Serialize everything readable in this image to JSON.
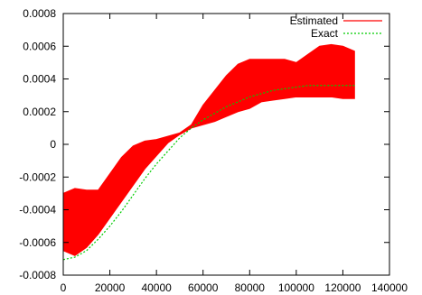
{
  "chart_data": {
    "type": "area",
    "title": "",
    "xlabel": "",
    "ylabel": "",
    "xlim": [
      0,
      140000
    ],
    "ylim": [
      -0.0008,
      0.0008
    ],
    "x_ticks": [
      0,
      20000,
      40000,
      60000,
      80000,
      100000,
      120000,
      140000
    ],
    "x_tick_labels": [
      "0",
      "20000",
      "40000",
      "60000",
      "80000",
      "100000",
      "120000",
      "140000"
    ],
    "y_ticks": [
      -0.0008,
      -0.0006,
      -0.0004,
      -0.0002,
      0,
      0.0002,
      0.0004,
      0.0006,
      0.0008
    ],
    "y_tick_labels": [
      "-0.0008",
      "-0.0006",
      "-0.0004",
      "-0.0002",
      "0",
      "0.0002",
      "0.0004",
      "0.0006",
      "0.0008"
    ],
    "grid": false,
    "legend_position": "top-right",
    "series": [
      {
        "name": "Estimated",
        "kind": "band",
        "color": "#ff0000",
        "x": [
          0,
          5000,
          10000,
          15000,
          20000,
          25000,
          30000,
          35000,
          40000,
          45000,
          50000,
          55000,
          60000,
          65000,
          70000,
          75000,
          80000,
          85000,
          90000,
          95000,
          100000,
          105000,
          110000,
          115000,
          120000,
          125000
        ],
        "lower": [
          -0.00065,
          -0.00068,
          -0.00063,
          -0.00055,
          -0.00045,
          -0.00035,
          -0.00025,
          -0.00015,
          -7e-05,
          1e-05,
          6e-05,
          0.0001,
          0.00012,
          0.00014,
          0.00017,
          0.0002,
          0.00022,
          0.00026,
          0.00027,
          0.00028,
          0.00029,
          0.00029,
          0.00029,
          0.00029,
          0.00028,
          0.00028
        ],
        "upper": [
          -0.0003,
          -0.00027,
          -0.00028,
          -0.00028,
          -0.00018,
          -8e-05,
          -1e-05,
          2e-05,
          3e-05,
          5e-05,
          7e-05,
          0.00012,
          0.00024,
          0.00033,
          0.00042,
          0.00049,
          0.00052,
          0.00052,
          0.00052,
          0.00052,
          0.0005,
          0.00055,
          0.0006,
          0.00061,
          0.0006,
          0.00057
        ]
      },
      {
        "name": "Exact",
        "kind": "line",
        "color": "#00cc00",
        "x": [
          0,
          5000,
          10000,
          15000,
          20000,
          25000,
          30000,
          35000,
          40000,
          45000,
          50000,
          55000,
          60000,
          65000,
          70000,
          75000,
          80000,
          85000,
          90000,
          95000,
          100000,
          105000,
          110000,
          115000,
          120000,
          125000
        ],
        "values": [
          -0.000705,
          -0.00069,
          -0.00065,
          -0.00058,
          -0.0005,
          -0.00041,
          -0.00031,
          -0.00021,
          -0.00012,
          -4e-05,
          4e-05,
          0.0001,
          0.00015,
          0.00019,
          0.00023,
          0.00026,
          0.00029,
          0.00031,
          0.00033,
          0.00034,
          0.00035,
          0.00036,
          0.00036,
          0.00036,
          0.00036,
          0.00036
        ]
      }
    ]
  }
}
